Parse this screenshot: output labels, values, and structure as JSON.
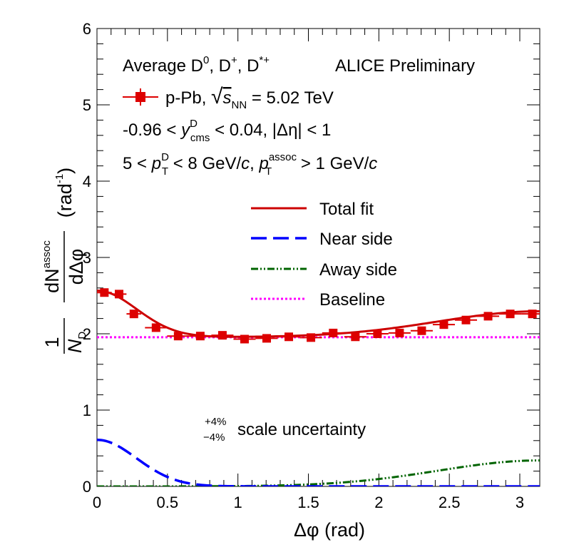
{
  "chart_data": {
    "type": "scatter",
    "xlabel": "Δφ (rad)",
    "ylabel": {
      "factor_num": "1",
      "factor_den": "N",
      "factor_den_sub": "D",
      "num": "dN",
      "num_sup": "assoc",
      "den": "dΔφ",
      "unit_open": "(rad",
      "unit_sup": "-1",
      "unit_close": ")"
    },
    "xlim": [
      0,
      3.1416
    ],
    "ylim": [
      0,
      6
    ],
    "x_ticks": [
      "0",
      "0.5",
      "1",
      "1.5",
      "2",
      "2.5",
      "3"
    ],
    "x_tick_values": [
      0,
      0.5,
      1,
      1.5,
      2,
      2.5,
      3
    ],
    "y_ticks": [
      "0",
      "1",
      "2",
      "3",
      "4",
      "5",
      "6"
    ],
    "y_tick_values": [
      0,
      1,
      2,
      3,
      4,
      5,
      6
    ],
    "annotations": {
      "line1": "Average D",
      "line1_sup_d0": "0",
      "line1_sep1": ", D",
      "line1_sup_dplus": "+",
      "line1_sep2": ", D",
      "line1_sup_dstar": "*+",
      "preliminary": "ALICE Preliminary",
      "line2_prefix": "p-Pb, ",
      "line2_sqrt": "√",
      "line2_s": "s",
      "line2_sub": "NN",
      "line2_suffix": " = 5.02 TeV",
      "line3_a": "-0.96 < ",
      "line3_y": "y",
      "line3_sup": "D",
      "line3_sub": "cms",
      "line3_b": " < 0.04, |Δη| < 1",
      "line4_a": "5 < ",
      "line4_p1": "p",
      "line4_p1_sup": "D",
      "line4_p1_sub": "T",
      "line4_b": " < 8 GeV/",
      "line4_c1": "c",
      "line4_comma": ", ",
      "line4_p2": "p",
      "line4_p2_sup": "assoc",
      "line4_p2_sub": "T",
      "line4_c": " > 1 GeV/",
      "line4_c2": "c",
      "scale_plus": "+4%",
      "scale_minus": "−4%",
      "scale_text": "scale uncertainty"
    },
    "legend_placement": "center-right",
    "legend": [
      {
        "key": "total",
        "label": "Total fit",
        "color": "#cc0000",
        "style": "solid"
      },
      {
        "key": "near",
        "label": "Near side",
        "color": "#0000ff",
        "style": "dashed"
      },
      {
        "key": "away",
        "label": "Away side",
        "color": "#006400",
        "style": "dashdot"
      },
      {
        "key": "baseline",
        "label": "Baseline",
        "color": "#ff00ff",
        "style": "dotted"
      }
    ],
    "series": [
      {
        "name": "p-Pb",
        "color": "#dd0000",
        "x": [
          0.0524,
          0.157,
          0.262,
          0.419,
          0.576,
          0.733,
          0.89,
          1.047,
          1.204,
          1.361,
          1.518,
          1.676,
          1.833,
          1.99,
          2.147,
          2.304,
          2.461,
          2.618,
          2.775,
          2.932,
          3.089
        ],
        "xerr": [
          0.0524,
          0.0524,
          0.0524,
          0.0785,
          0.0785,
          0.0785,
          0.0785,
          0.0785,
          0.0785,
          0.0785,
          0.0785,
          0.0785,
          0.0785,
          0.0785,
          0.0785,
          0.0785,
          0.0785,
          0.0785,
          0.0785,
          0.0785,
          0.0785
        ],
        "y": [
          2.54,
          2.52,
          2.26,
          2.08,
          1.97,
          1.97,
          1.98,
          1.93,
          1.94,
          1.96,
          1.95,
          2.01,
          1.96,
          2.0,
          2.01,
          2.04,
          2.12,
          2.18,
          2.23,
          2.26,
          2.26
        ],
        "yerr": [
          0.03,
          0.03,
          0.03,
          0.03,
          0.03,
          0.03,
          0.03,
          0.03,
          0.03,
          0.03,
          0.03,
          0.03,
          0.03,
          0.03,
          0.03,
          0.03,
          0.03,
          0.03,
          0.03,
          0.03,
          0.03
        ]
      }
    ],
    "fit": {
      "baseline": 1.955,
      "near_amplitude": 0.61,
      "near_sigma": 0.28,
      "away_amplitude": 0.34,
      "away_sigma": 0.72
    }
  }
}
